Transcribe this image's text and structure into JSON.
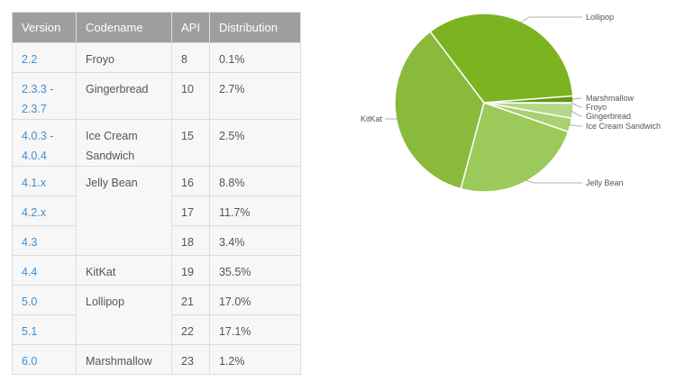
{
  "table": {
    "headers": [
      "Version",
      "Codename",
      "API",
      "Distribution"
    ],
    "rows": [
      {
        "version": "2.2",
        "codename": "Froyo",
        "codename_rows": 1,
        "api": "8",
        "distribution": "0.1%"
      },
      {
        "version": "2.3.3 - 2.3.7",
        "codename": "Gingerbread",
        "codename_rows": 1,
        "api": "10",
        "distribution": "2.7%"
      },
      {
        "version": "4.0.3 - 4.0.4",
        "codename": "Ice Cream Sandwich",
        "codename_rows": 1,
        "api": "15",
        "distribution": "2.5%"
      },
      {
        "version": "4.1.x",
        "codename": "Jelly Bean",
        "codename_rows": 3,
        "api": "16",
        "distribution": "8.8%"
      },
      {
        "version": "4.2.x",
        "codename": null,
        "api": "17",
        "distribution": "11.7%"
      },
      {
        "version": "4.3",
        "codename": null,
        "api": "18",
        "distribution": "3.4%"
      },
      {
        "version": "4.4",
        "codename": "KitKat",
        "codename_rows": 1,
        "api": "19",
        "distribution": "35.5%"
      },
      {
        "version": "5.0",
        "codename": "Lollipop",
        "codename_rows": 2,
        "api": "21",
        "distribution": "17.0%"
      },
      {
        "version": "5.1",
        "codename": null,
        "api": "22",
        "distribution": "17.1%"
      },
      {
        "version": "6.0",
        "codename": "Marshmallow",
        "codename_rows": 1,
        "api": "23",
        "distribution": "1.2%"
      }
    ]
  },
  "chart_data": {
    "type": "pie",
    "start": "3 o'clock, clockwise",
    "slices": [
      {
        "label": "Froyo",
        "value": 0.1,
        "color": "#b5d78a"
      },
      {
        "label": "Gingerbread",
        "value": 2.7,
        "color": "#b5d78a"
      },
      {
        "label": "Ice Cream Sandwich",
        "value": 2.5,
        "color": "#a9d071"
      },
      {
        "label": "Jelly Bean",
        "value": 23.9,
        "color": "#9bc95a"
      },
      {
        "label": "KitKat",
        "value": 35.5,
        "color": "#8aba3c"
      },
      {
        "label": "Lollipop",
        "value": 34.1,
        "color": "#7cb321"
      },
      {
        "label": "Marshmallow",
        "value": 1.2,
        "color": "#5e9b12"
      }
    ]
  }
}
